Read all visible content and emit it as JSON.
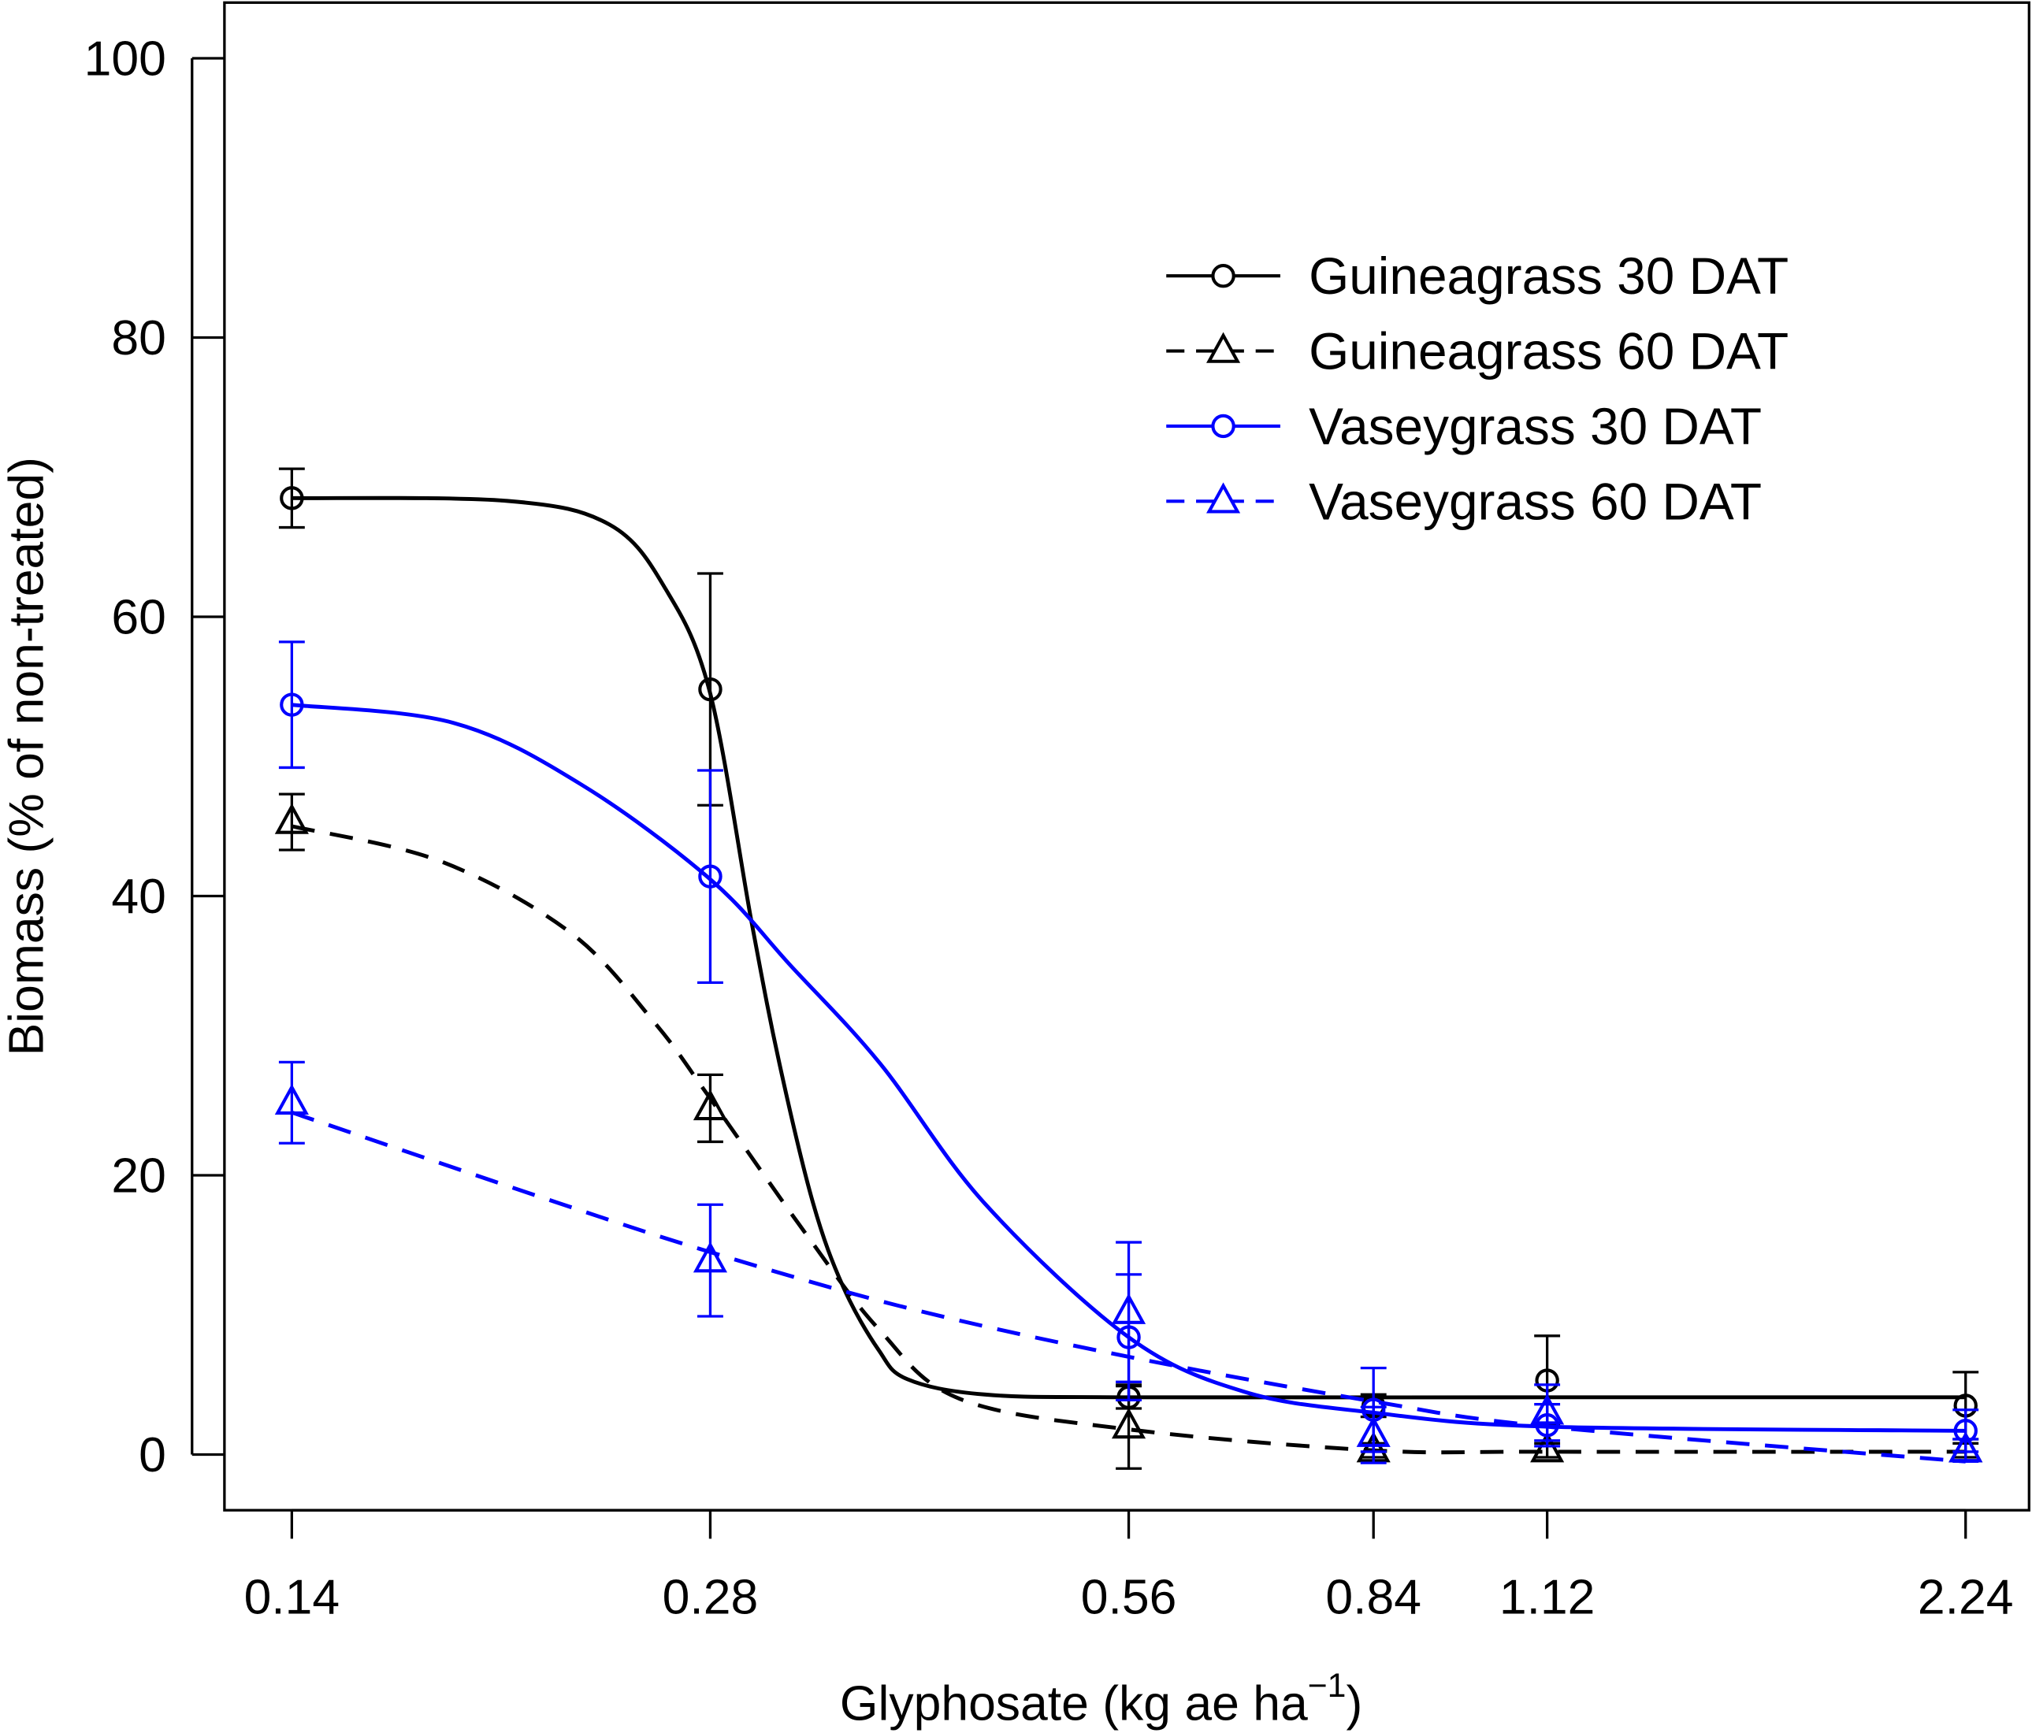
{
  "chart_data": {
    "type": "line",
    "title": "",
    "xlabel": "Glyphosate (kg ae ha",
    "xlabel_superscript": "−1",
    "xlabel_close": ")",
    "ylabel": "Biomass (% of non-treated)",
    "x_scale": "log",
    "x_ticks": [
      0.14,
      0.28,
      0.56,
      0.84,
      1.12,
      2.24
    ],
    "x_tick_labels": [
      "0.14",
      "0.28",
      "0.56",
      "0.84",
      "1.12",
      "2.24"
    ],
    "y_ticks": [
      0,
      20,
      40,
      60,
      80,
      100
    ],
    "y_tick_labels": [
      "0",
      "20",
      "40",
      "60",
      "80",
      "100"
    ],
    "xlim": [
      0.126,
      2.5
    ],
    "ylim": [
      -4,
      104
    ],
    "grid": false,
    "legend_position": "top-right",
    "x": [
      0.14,
      0.28,
      0.56,
      0.84,
      1.12,
      2.24
    ],
    "series": [
      {
        "name": "Guineagrass 30 DAT",
        "color": "#000000",
        "line": "solid",
        "marker": "circle",
        "values": [
          68.5,
          54.8,
          4.1,
          3.5,
          5.3,
          3.5
        ],
        "errors": [
          2.1,
          8.3,
          0.8,
          0.8,
          3.2,
          2.4
        ],
        "fit": [
          [
            0.14,
            68.5
          ],
          [
            0.2,
            68.3
          ],
          [
            0.237,
            66.6
          ],
          [
            0.26,
            62
          ],
          [
            0.28,
            54.5
          ],
          [
            0.3,
            38
          ],
          [
            0.314,
            28
          ],
          [
            0.332,
            18
          ],
          [
            0.349,
            12
          ],
          [
            0.37,
            7.5
          ],
          [
            0.388,
            5.4
          ],
          [
            0.441,
            4.3
          ],
          [
            0.56,
            4.1
          ],
          [
            1.12,
            4.1
          ],
          [
            2.24,
            4.1
          ]
        ]
      },
      {
        "name": "Guineagrass 60 DAT",
        "color": "#000000",
        "line": "dashed",
        "marker": "triangle",
        "values": [
          45.3,
          24.8,
          2.0,
          0.3,
          0.3,
          0.3
        ],
        "errors": [
          2.0,
          2.4,
          3.0,
          0.5,
          0.5,
          0.5
        ],
        "fit": [
          [
            0.14,
            45
          ],
          [
            0.179,
            42.5
          ],
          [
            0.222,
            37.4
          ],
          [
            0.255,
            31
          ],
          [
            0.28,
            25.5
          ],
          [
            0.327,
            16
          ],
          [
            0.37,
            9
          ],
          [
            0.423,
            4
          ],
          [
            0.56,
            1.8
          ],
          [
            0.84,
            0.3
          ],
          [
            1.12,
            0.2
          ],
          [
            2.24,
            0.2
          ]
        ]
      },
      {
        "name": "Vaseygrass 30 DAT",
        "color": "#0000ff",
        "line": "solid",
        "marker": "circle",
        "values": [
          53.7,
          41.4,
          8.4,
          3.2,
          2.1,
          1.7
        ],
        "errors": [
          4.5,
          7.6,
          4.5,
          3.0,
          1.5,
          1.5
        ],
        "fit": [
          [
            0.14,
            53.7
          ],
          [
            0.183,
            52.4
          ],
          [
            0.226,
            48
          ],
          [
            0.28,
            41.2
          ],
          [
            0.32,
            35
          ],
          [
            0.371,
            28
          ],
          [
            0.441,
            18
          ],
          [
            0.56,
            8.4
          ],
          [
            0.678,
            4.5
          ],
          [
            0.84,
            3
          ],
          [
            1.12,
            2
          ],
          [
            2.24,
            1.7
          ]
        ]
      },
      {
        "name": "Vaseygrass 60 DAT",
        "color": "#0000ff",
        "line": "dashed",
        "marker": "triangle",
        "values": [
          25.2,
          13.9,
          10.2,
          1.4,
          3.0,
          0.3
        ],
        "errors": [
          2.9,
          4.0,
          5.0,
          2.0,
          2.0,
          0.8
        ],
        "fit": [
          [
            0.14,
            24.5
          ],
          [
            0.212,
            18.4
          ],
          [
            0.28,
            14.5
          ],
          [
            0.388,
            10.5
          ],
          [
            0.56,
            7.0
          ],
          [
            0.84,
            3.8
          ],
          [
            1.12,
            2.0
          ],
          [
            2.24,
            -0.5
          ]
        ]
      }
    ]
  }
}
